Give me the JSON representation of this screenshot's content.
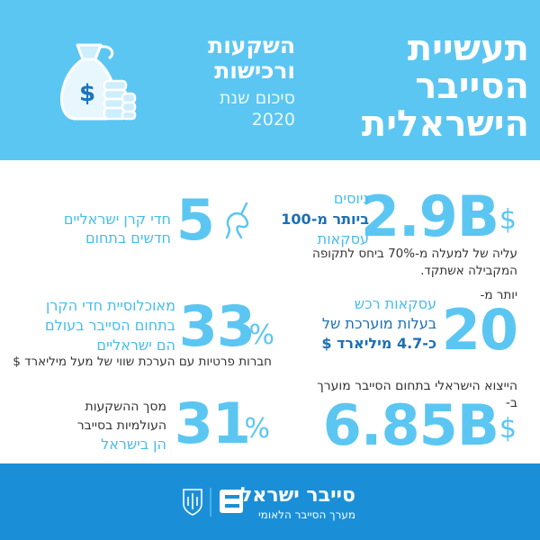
{
  "header": {
    "title_lines": [
      "תעשיית",
      "הסייבר",
      "הישראלית"
    ],
    "subtitle_lines": [
      "השקעות",
      "ורכישות"
    ],
    "period_lines": [
      "סיכום שנת",
      "2020"
    ]
  },
  "stats": [
    {
      "number": "2.9B",
      "unit": "$",
      "lines": [
        "גיוסים",
        "ביותר מ-100",
        "עסקאות"
      ],
      "note_lines": [
        "עליה של למעלה מ-70% ביחס לתקופה",
        "המקבילה אשתקד."
      ]
    },
    {
      "number": "5",
      "lines": [
        "חדי קרן ישראליים",
        "חדשים בתחום"
      ]
    },
    {
      "number": "20",
      "prefix": "יותר מ-",
      "lines": [
        "עסקאות רכש",
        "בעלות מוערכת של",
        "כ-4.7 מיליארד $"
      ]
    },
    {
      "number": "33",
      "unit": "%",
      "lines": [
        "מאוכלוסיית חדי הקרן",
        "בתחום הסייבר בעולם",
        "הם ישראליים"
      ],
      "note_lines": [
        "חברות פרטיות עם הערכת שווי של מעל מיליארד $"
      ]
    },
    {
      "number": "6.85B",
      "unit": "$",
      "lines": [
        "הייצוא הישראלי בתחום הסייבר מוערך",
        "ב-"
      ]
    },
    {
      "number": "31",
      "unit": "%",
      "lines": [
        "מסך ההשקעות",
        "העולמיות בסייבר",
        "הן בישראל"
      ]
    }
  ],
  "footer": {
    "brand": "סייבר ישראל",
    "tagline": "מערך הסייבר הלאומי"
  }
}
